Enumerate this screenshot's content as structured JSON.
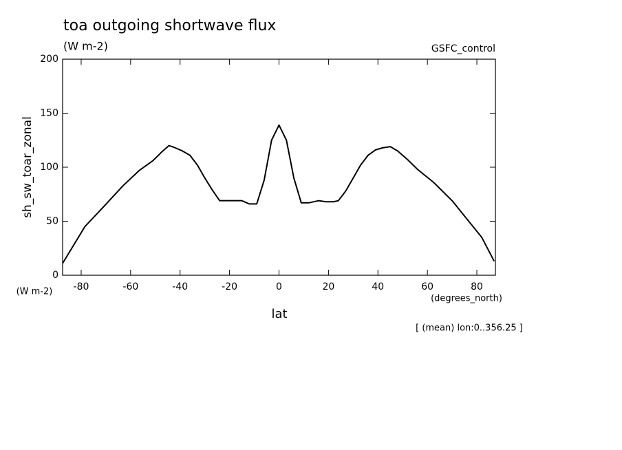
{
  "chart_data": {
    "type": "line",
    "title": "toa outgoing shortwave flux",
    "subtitle": "(W m-2)",
    "dataset_label": "GSFC_control",
    "y_label": "sh_sw_toar_zonal",
    "y_units": "(W m-2)",
    "x_label": "lat",
    "x_units": "(degrees_north)",
    "note": "[ (mean) lon:0..356.25 ]",
    "x": [
      -87.5,
      -78.5,
      -71.5,
      -63,
      -56.5,
      -51,
      -47,
      -44.5,
      -42,
      -39,
      -36,
      -33,
      -30,
      -27,
      -24,
      -21,
      -15,
      -12,
      -9,
      -6,
      -3,
      0,
      3,
      6,
      9,
      12,
      16,
      19,
      22,
      24,
      27,
      30,
      33,
      36,
      39,
      42,
      45,
      48,
      52,
      56,
      62.5,
      70,
      76,
      82,
      87
    ],
    "series": [
      {
        "color": "#000000",
        "values": [
          11,
          45,
          62,
          83,
          97,
          106,
          115,
          120,
          118,
          115,
          111,
          102,
          90,
          79,
          69,
          69,
          69,
          66,
          66,
          88,
          125,
          139,
          125,
          90,
          67,
          67,
          69,
          68,
          68,
          69,
          78,
          90,
          102,
          111,
          116,
          118,
          119,
          115,
          107,
          98,
          86,
          69,
          52,
          35,
          13
        ]
      }
    ],
    "xlim": [
      -87.5,
      87.5
    ],
    "ylim": [
      0,
      200
    ],
    "xticks": [
      -80,
      -60,
      -40,
      -20,
      0,
      20,
      40,
      60,
      80
    ],
    "yticks": [
      0,
      50,
      100,
      150,
      200
    ]
  }
}
